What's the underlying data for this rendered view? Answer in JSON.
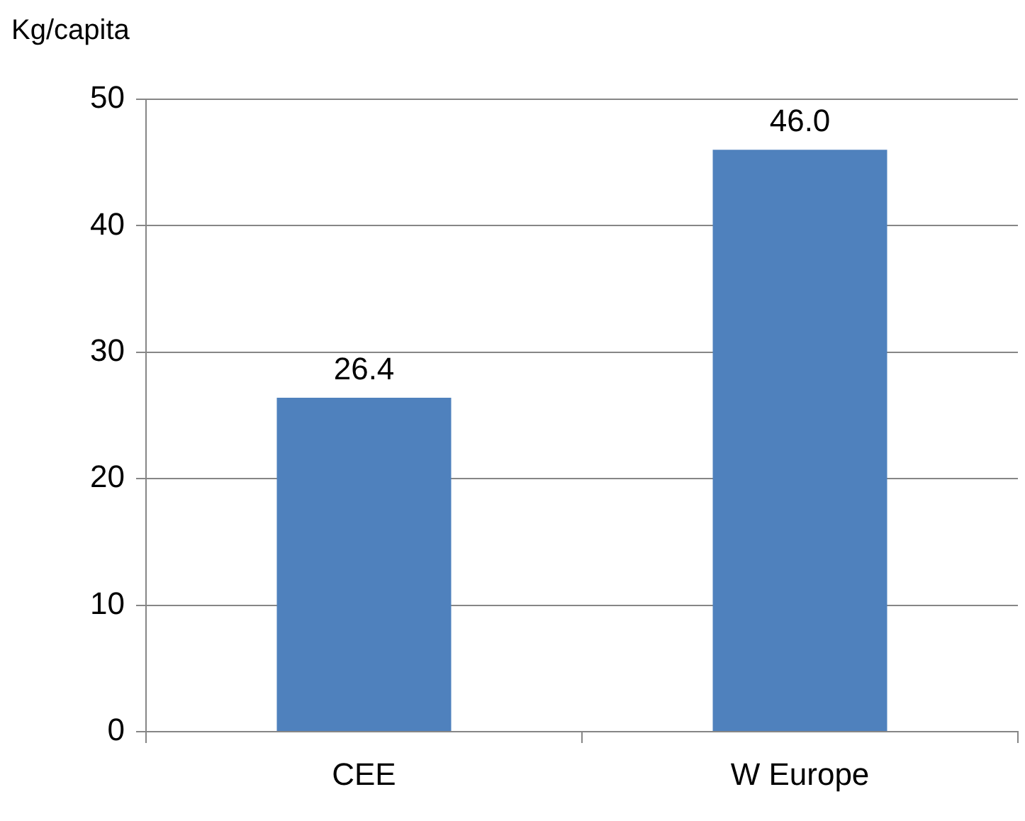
{
  "chart_data": {
    "type": "bar",
    "ylabel": "Kg/capita",
    "categories": [
      "CEE",
      "W Europe"
    ],
    "values": [
      26.4,
      46.0
    ],
    "value_labels": [
      "26.4",
      "46.0"
    ],
    "color": "#4f81bd",
    "ylim": [
      0,
      50
    ],
    "yticks": [
      0,
      10,
      20,
      30,
      40,
      50
    ],
    "grid": "y",
    "legend": false
  }
}
